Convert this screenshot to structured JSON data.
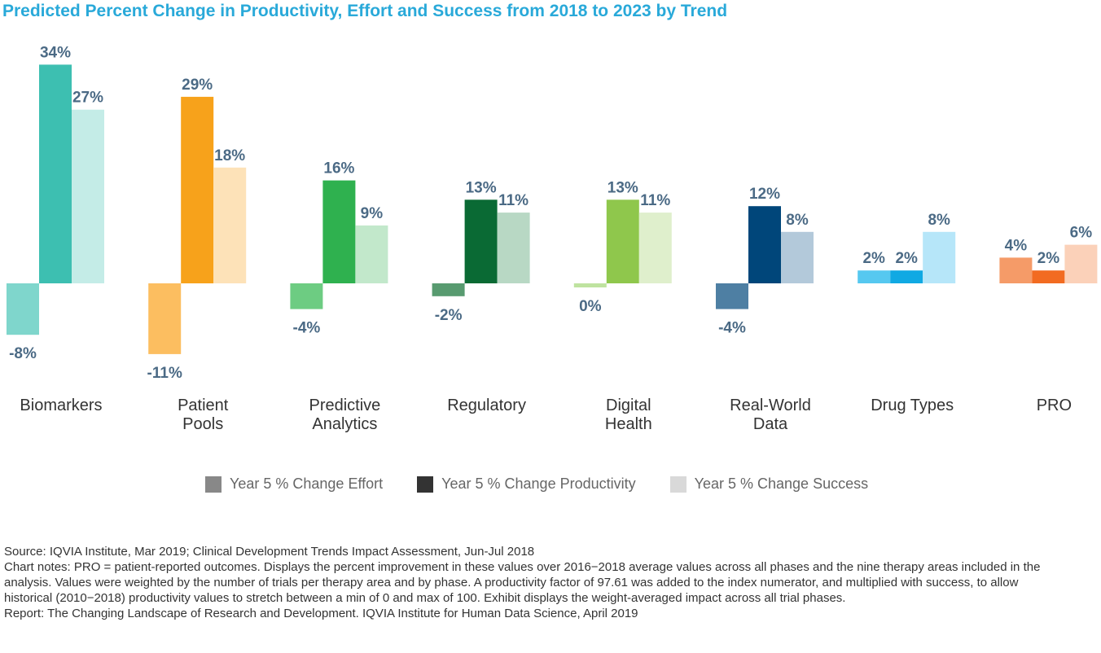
{
  "title": "Predicted Percent Change in Productivity, Effort and Success from 2018 to 2023 by Trend",
  "chart_data": {
    "type": "bar",
    "categories": [
      [
        "Biomarkers"
      ],
      [
        "Patient",
        "Pools"
      ],
      [
        "Predictive",
        "Analytics"
      ],
      [
        "Regulatory"
      ],
      [
        "Digital",
        "Health"
      ],
      [
        "Real-World",
        "Data"
      ],
      [
        "Drug Types"
      ],
      [
        "PRO"
      ]
    ],
    "series": [
      {
        "name": "Year 5 % Change Effort",
        "values": [
          -8,
          -11,
          -4,
          -2,
          0,
          -4,
          2,
          4
        ],
        "labels": [
          "-8%",
          "-11%",
          "-4%",
          "-2%",
          "0%",
          "-4%",
          "2%",
          "4%"
        ]
      },
      {
        "name": "Year 5 % Change Productivity",
        "values": [
          34,
          29,
          16,
          13,
          13,
          12,
          2,
          2
        ],
        "labels": [
          "34%",
          "29%",
          "16%",
          "13%",
          "13%",
          "12%",
          "2%",
          "2%"
        ]
      },
      {
        "name": "Year 5 % Change Success",
        "values": [
          27,
          18,
          9,
          11,
          11,
          8,
          8,
          6
        ],
        "labels": [
          "27%",
          "18%",
          "9%",
          "11%",
          "11%",
          "8%",
          "8%",
          "6%"
        ]
      }
    ],
    "category_colors": [
      [
        "#7fd6cc",
        "#3dbfb1",
        "#c4ece7"
      ],
      [
        "#fcbe60",
        "#f7a21b",
        "#fde2b8"
      ],
      [
        "#6dcc82",
        "#2fb14f",
        "#c2e8cb"
      ],
      [
        "#589b70",
        "#0a6a34",
        "#b8d8c4"
      ],
      [
        "#bfe3a0",
        "#8fc74c",
        "#dfefcc"
      ],
      [
        "#4e7fa3",
        "#00467a",
        "#b3c9da"
      ],
      [
        "#56c8f0",
        "#10a9e3",
        "#b6e6f9"
      ],
      [
        "#f59b68",
        "#f26b21",
        "#fbd1b9"
      ]
    ],
    "ylim": [
      -12,
      35
    ],
    "legend_colors": [
      "#888888",
      "#333333",
      "#d9d9d9"
    ],
    "legend_position": "bottom-center",
    "grid": false
  },
  "notes": {
    "source": "Source: IQVIA Institute, Mar 2019; Clinical Development Trends Impact Assessment, Jun-Jul 2018",
    "chart_notes": "Chart notes: PRO = patient-reported outcomes. Displays the percent improvement in these values over 2016−2018 average values across all phases and the nine therapy areas included in the analysis. Values were weighted by the number of trials per therapy area and by phase. A productivity factor of 97.61 was added to the index numerator, and multiplied with success, to allow historical (2010−2018) productivity values to stretch between a min of 0 and max of 100. Exhibit displays the weight-averaged impact across all trial phases.",
    "report": "Report: The Changing Landscape of Research and Development. IQVIA Institute for Human Data Science, April 2019"
  }
}
